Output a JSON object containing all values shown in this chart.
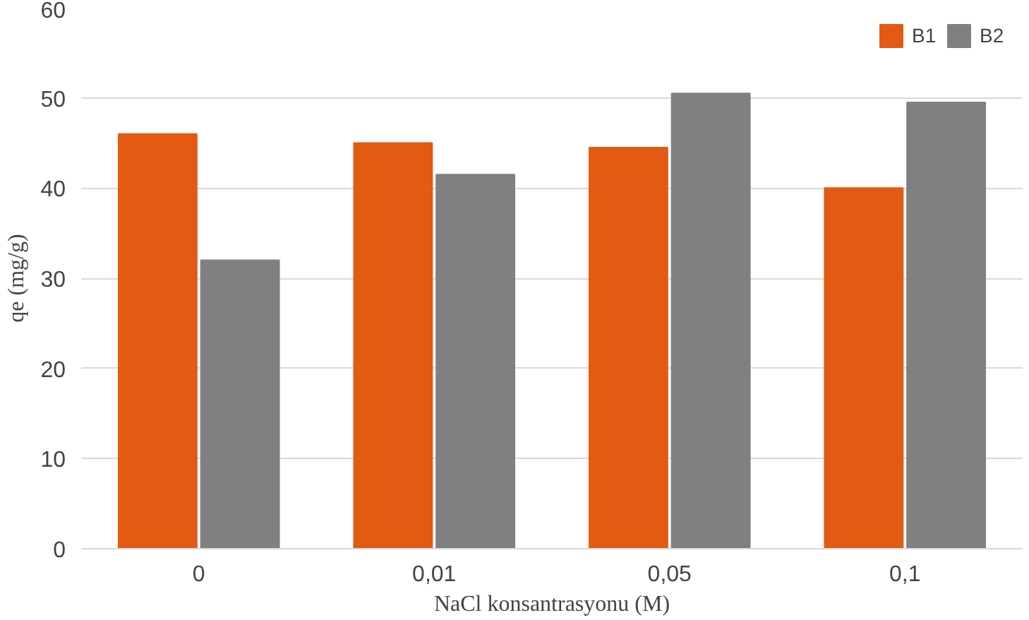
{
  "chart_data": {
    "type": "bar",
    "xlabel": "NaCl konsantrasyonu (M)",
    "ylabel": "qe (mg/g)",
    "categories": [
      "0",
      "0,01",
      "0,05",
      "0,1"
    ],
    "series": [
      {
        "name": "B1",
        "color": "#e35a13",
        "values": [
          46,
          45,
          44.5,
          40
        ]
      },
      {
        "name": "B2",
        "color": "#808080",
        "values": [
          32,
          41.5,
          50.5,
          49.5
        ]
      }
    ],
    "ylim": [
      0,
      60
    ],
    "yticks": [
      0,
      10,
      20,
      30,
      40,
      50,
      60
    ],
    "grid": "y",
    "legend": "top right"
  }
}
